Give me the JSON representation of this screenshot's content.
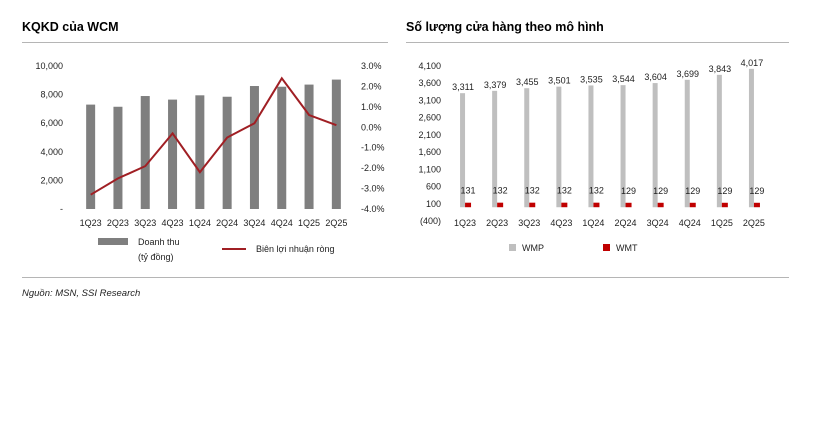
{
  "left_title": "KQKD của WCM",
  "right_title": "Số lượng cửa hàng theo mô hình",
  "source": "Nguồn: MSN, SSI Research",
  "chart_data": [
    {
      "type": "bar",
      "title": "KQKD của WCM",
      "categories": [
        "1Q23",
        "2Q23",
        "3Q23",
        "4Q23",
        "1Q24",
        "2Q24",
        "3Q24",
        "4Q24",
        "1Q25",
        "2Q25"
      ],
      "series": [
        {
          "name": "Doanh thu\n(tỷ đồng)",
          "type": "bar",
          "axis": "left",
          "color": "#7f7f7f",
          "values": [
            7300,
            7150,
            7900,
            7650,
            7950,
            7850,
            8600,
            8550,
            8700,
            9050
          ]
        },
        {
          "name": "Biên lợi nhuận ròng",
          "type": "line",
          "axis": "right",
          "color": "#a01f24",
          "values": [
            -3.3,
            -2.5,
            -1.9,
            -0.3,
            -2.2,
            -0.5,
            0.2,
            2.4,
            0.6,
            0.1
          ]
        }
      ],
      "left_axis": {
        "ylim": [
          0,
          10000
        ],
        "ticks": [
          "10,000",
          "8,000",
          "6,000",
          "4,000",
          "2,000",
          "-"
        ]
      },
      "right_axis": {
        "ylim": [
          -4,
          3
        ],
        "ticks": [
          "3.0%",
          "2.0%",
          "1.0%",
          "0.0%",
          "-1.0%",
          "-2.0%",
          "-3.0%",
          "-4.0%"
        ]
      },
      "legend_position": "bottom"
    },
    {
      "type": "bar",
      "title": "Số lượng cửa hàng theo mô hình",
      "categories": [
        "1Q23",
        "2Q23",
        "3Q23",
        "4Q23",
        "1Q24",
        "2Q24",
        "3Q24",
        "4Q24",
        "1Q25",
        "2Q25"
      ],
      "series": [
        {
          "name": "WMP",
          "color": "#bfbfbf",
          "values": [
            3311,
            3379,
            3455,
            3501,
            3535,
            3544,
            3604,
            3699,
            3843,
            4017
          ],
          "labels": [
            "3,311",
            "3,379",
            "3,455",
            "3,501",
            "3,535",
            "3,544",
            "3,604",
            "3,699",
            "3,843",
            "4,017"
          ]
        },
        {
          "name": "WMT",
          "color": "#c00000",
          "values": [
            131,
            132,
            132,
            132,
            132,
            129,
            129,
            129,
            129,
            129
          ],
          "labels": [
            "131",
            "132",
            "132",
            "132",
            "132",
            "129",
            "129",
            "129",
            "129",
            "129"
          ]
        }
      ],
      "ylim": [
        -400,
        4100
      ],
      "ticks": [
        "4,100",
        "3,600",
        "3,100",
        "2,600",
        "2,100",
        "1,600",
        "1,100",
        "600",
        "100",
        "(400)"
      ],
      "legend_position": "bottom"
    }
  ]
}
